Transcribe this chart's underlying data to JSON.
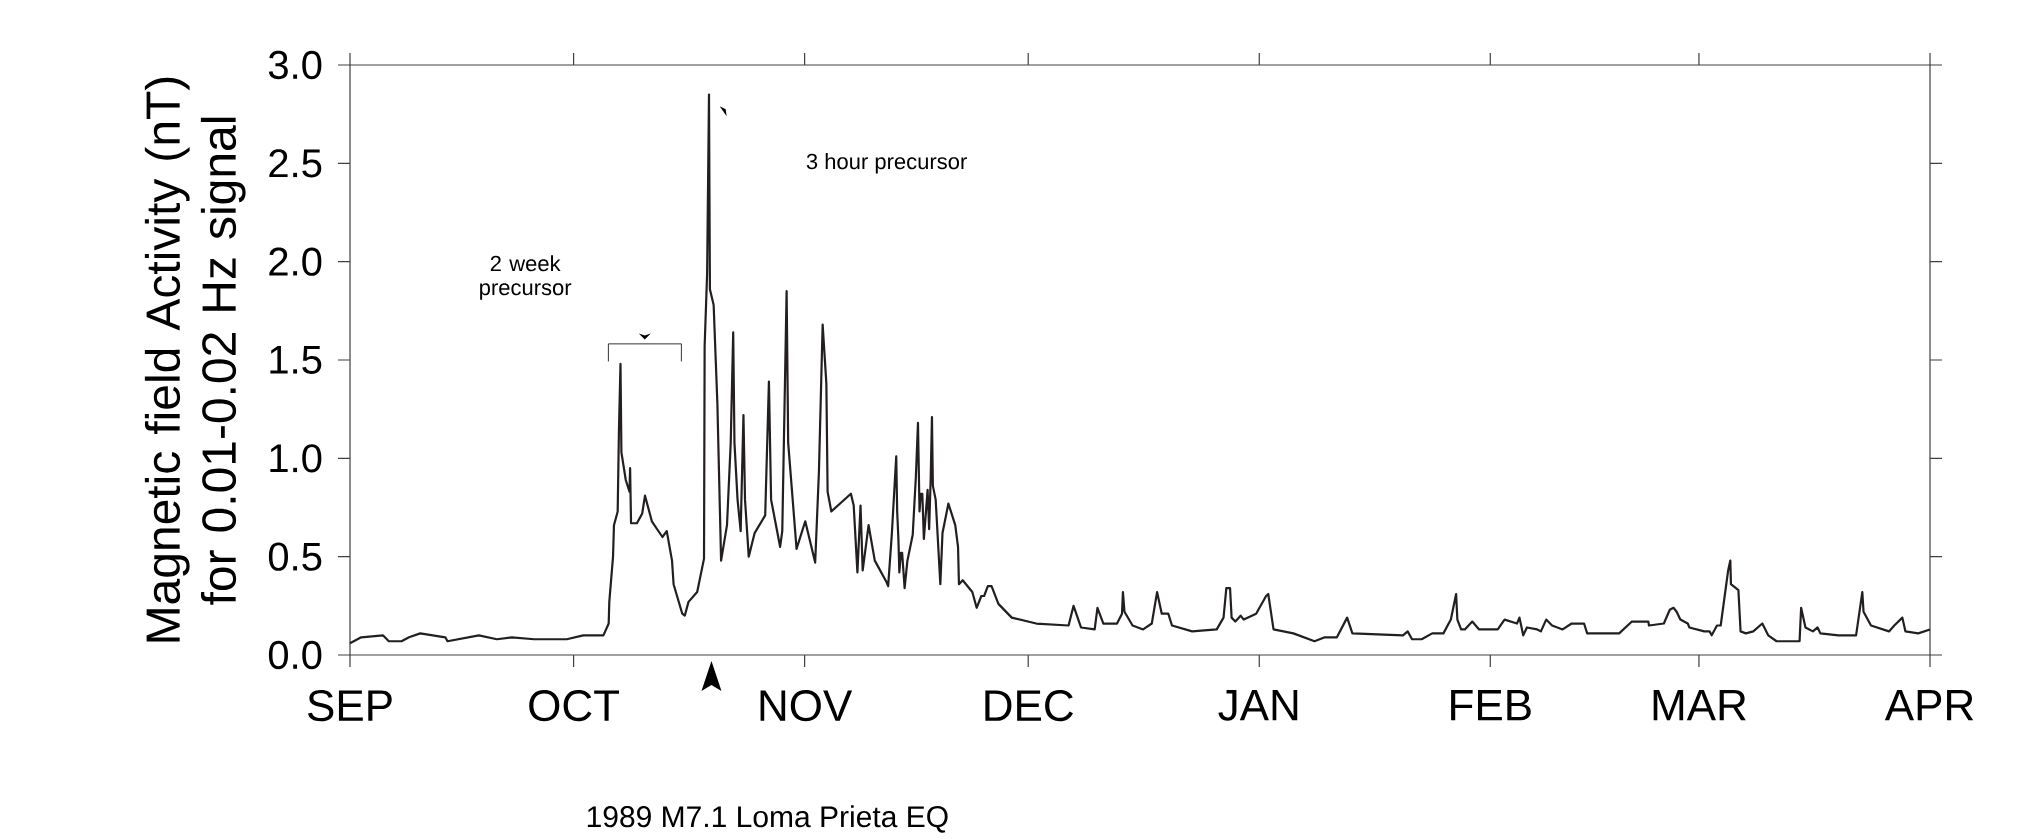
{
  "chart_data": {
    "type": "line",
    "ylabel": "Magnetic field Activity (nT) for 0.01-0.02 Hz signal",
    "color": "#231f20",
    "annotations": [
      "2 week precursor",
      "3 hour precursor",
      "1989 M7.1 Loma Prieta EQ"
    ],
    "xlim": [
      "1989-09-01",
      "1990-04-01"
    ],
    "xticks": [
      {
        "value": "1989-09-01",
        "label": "SEP"
      },
      {
        "value": "1989-10-01",
        "label": "OCT"
      },
      {
        "value": "1989-11-01",
        "label": "NOV"
      },
      {
        "value": "1989-12-01",
        "label": "DEC"
      },
      {
        "value": "1990-01-01",
        "label": "JAN"
      },
      {
        "value": "1990-02-01",
        "label": "FEB"
      },
      {
        "value": "1990-03-01",
        "label": "MAR"
      },
      {
        "value": "1990-04-01",
        "label": "APR"
      }
    ],
    "ylim": [
      0,
      3
    ],
    "yticks": [
      {
        "value": 0,
        "label": "0.0"
      },
      {
        "value": 0.5,
        "label": "0.5"
      },
      {
        "value": 1,
        "label": "1.0"
      },
      {
        "value": 1.5,
        "label": "1.5"
      },
      {
        "value": 2,
        "label": "2.0"
      },
      {
        "value": 2.5,
        "label": "2.5"
      },
      {
        "value": 3,
        "label": "3.0"
      }
    ],
    "x": [
      "1989-09-01T00:00",
      "1989-09-02T12:00",
      "1989-09-05T10:00",
      "1989-09-06T05:00",
      "1989-09-07T22:00",
      "1989-09-08T22:00",
      "1989-09-10T10:00",
      "1989-09-13T19:00",
      "1989-09-14T02:00",
      "1989-09-18T07:00",
      "1989-09-20T17:00",
      "1989-09-22T17:00",
      "1989-09-25T17:00",
      "1989-09-30T02:00",
      "1989-10-02T07:00",
      "1989-10-05T00:00",
      "1989-10-05T17:00",
      "1989-10-05T19:00",
      "1989-10-06T07:00",
      "1989-10-06T10:00",
      "1989-10-06T22:00",
      "1989-10-07T02:00",
      "1989-10-07T07:00",
      "1989-10-07T10:00",
      "1989-10-08T00:00",
      "1989-10-08T12:00",
      "1989-10-08T14:00",
      "1989-10-08T17:00",
      "1989-10-09T12:00",
      "1989-10-10T05:00",
      "1989-10-10T14:00",
      "1989-10-11T12:00",
      "1989-10-12T22:00",
      "1989-10-13T12:00",
      "1989-10-14T05:00",
      "1989-10-14T10:00",
      "1989-10-15T14:00",
      "1989-10-15T22:00",
      "1989-10-16T10:00",
      "1989-10-17T14:00",
      "1989-10-18T12:00",
      "1989-10-18T14:00",
      "1989-10-18T22:00",
      "1989-10-19T04:00",
      "1989-10-19T07:00",
      "1989-10-19T19:00",
      "1989-10-20T07:00",
      "1989-10-20T19:00",
      "1989-10-21T14:00",
      "1989-10-22T02:00",
      "1989-10-22T10:00",
      "1989-10-22T14:00",
      "1989-10-23T00:00",
      "1989-10-23T10:00",
      "1989-10-23T19:00",
      "1989-10-24T00:00",
      "1989-10-24T12:00",
      "1989-10-25T07:00",
      "1989-10-26T17:00",
      "1989-10-27T05:00",
      "1989-10-27T12:00",
      "1989-10-28T17:00",
      "1989-10-29T00:00",
      "1989-10-29T14:00",
      "1989-10-29T19:00",
      "1989-10-30T22:00",
      "1989-11-01T02:00",
      "1989-11-02T10:00",
      "1989-11-02T22:00",
      "1989-11-03T10:00",
      "1989-11-03T22:00",
      "1989-11-04T02:00",
      "1989-11-04T14:00",
      "1989-11-07T05:00",
      "1989-11-07T14:00",
      "1989-11-08T02:00",
      "1989-11-08T12:00",
      "1989-11-08T19:00",
      "1989-11-09T14:00",
      "1989-11-10T10:00",
      "1989-11-12T00:00",
      "1989-11-12T05:00",
      "1989-11-12T17:00",
      "1989-11-13T07:00",
      "1989-11-13T10:00",
      "1989-11-13T14:00",
      "1989-11-13T17:00",
      "1989-11-13T22:00",
      "1989-11-14T02:00",
      "1989-11-14T10:00",
      "1989-11-14T19:00",
      "1989-11-15T12:00",
      "1989-11-15T22:00",
      "1989-11-16T05:00",
      "1989-11-16T10:00",
      "1989-11-16T14:00",
      "1989-11-16T19:00",
      "1989-11-17T00:00",
      "1989-11-17T12:00",
      "1989-11-17T17:00",
      "1989-11-17T22:00",
      "1989-11-18T02:00",
      "1989-11-18T05:00",
      "1989-11-18T14:00",
      "1989-11-19T05:00",
      "1989-11-19T12:00",
      "1989-11-20T07:00",
      "1989-11-21T05:00",
      "1989-11-21T14:00",
      "1989-11-21T17:00",
      "1989-11-22T05:00",
      "1989-11-23T12:00",
      "1989-11-24T02:00",
      "1989-11-24T17:00",
      "1989-11-25T02:00",
      "1989-11-25T14:00",
      "1989-11-26T02:00",
      "1989-11-27T00:00",
      "1989-11-28T19:00",
      "1989-12-02T02:00",
      "1989-12-06T10:00",
      "1989-12-07T02:00",
      "1989-12-08T02:00",
      "1989-12-09T22:00",
      "1989-12-10T07:00",
      "1989-12-11T02:00",
      "1989-12-12T22:00",
      "1989-12-13T14:00",
      "1989-12-13T17:00",
      "1989-12-13T22:00",
      "1989-12-15T00:00",
      "1989-12-16T10:00",
      "1989-12-17T14:00",
      "1989-12-18T07:00",
      "1989-12-18T22:00",
      "1989-12-19T19:00",
      "1989-12-20T07:00",
      "1989-12-23T00:00",
      "1989-12-26T07:00",
      "1989-12-27T05:00",
      "1989-12-27T14:00",
      "1989-12-28T02:00",
      "1989-12-28T07:00",
      "1989-12-28T19:00",
      "1989-12-29T12:00",
      "1989-12-29T22:00",
      "1989-12-31T14:00",
      "1990-01-01T22:00",
      "1990-01-02T05:00",
      "1990-01-02T22:00",
      "1990-01-05T14:00",
      "1990-01-08T10:00",
      "1990-01-09T19:00",
      "1990-01-11T10:00",
      "1990-01-12T19:00",
      "1990-01-13T12:00",
      "1990-01-20T07:00",
      "1990-01-20T22:00",
      "1990-01-21T12:00",
      "1990-01-22T19:00",
      "1990-01-24T05:00",
      "1990-01-25T17:00",
      "1990-01-26T17:00",
      "1990-01-27T10:00",
      "1990-01-27T14:00",
      "1990-01-28T02:00",
      "1990-01-28T14:00",
      "1990-01-29T14:00",
      "1990-01-30T12:00",
      "1990-02-02T00:00",
      "1990-02-02T22:00",
      "1990-02-04T14:00",
      "1990-02-04T22:00",
      "1990-02-05T10:00",
      "1990-02-05T22:00",
      "1990-02-07T07:00",
      "1990-02-07T19:00",
      "1990-02-08T12:00",
      "1990-02-09T07:00",
      "1990-02-10T17:00",
      "1990-02-11T22:00",
      "1990-02-13T14:00",
      "1990-02-14T00:00",
      "1990-02-16T02:00",
      "1990-02-18T07:00",
      "1990-02-20T00:00",
      "1990-02-22T05:00",
      "1990-02-22T07:00",
      "1990-02-24T07:00",
      "1990-02-25T02:00",
      "1990-02-25T14:00",
      "1990-02-26T00:00",
      "1990-02-26T12:00",
      "1990-02-27T12:00",
      "1990-02-27T17:00",
      "1990-03-01T17:00",
      "1990-03-02T10:00",
      "1990-03-02T17:00",
      "1990-03-03T10:00",
      "1990-03-03T22:00",
      "1990-03-04T22:00",
      "1990-03-05T05:00",
      "1990-03-05T07:00",
      "1990-03-06T07:00",
      "1990-03-06T14:00",
      "1990-03-07T07:00",
      "1990-03-08T07:00",
      "1990-03-09T12:00",
      "1990-03-10T07:00",
      "1990-03-11T10:00",
      "1990-03-14T12:00",
      "1990-03-14T17:00",
      "1990-03-15T07:00",
      "1990-03-16T07:00",
      "1990-03-16T22:00",
      "1990-03-17T07:00",
      "1990-03-19T17:00",
      "1990-03-22T02:00",
      "1990-03-22T22:00",
      "1990-03-23T02:00",
      "1990-03-24T02:00",
      "1990-03-26T12:00",
      "1990-03-27T05:00",
      "1990-03-28T07:00",
      "1990-03-28T17:00",
      "1990-03-30T10:00",
      "1990-04-01T00:00"
    ],
    "values": [
      0.06,
      0.09,
      0.1,
      0.07,
      0.07,
      0.09,
      0.11,
      0.09,
      0.07,
      0.1,
      0.08,
      0.09,
      0.08,
      0.08,
      0.1,
      0.1,
      0.16,
      0.27,
      0.5,
      0.66,
      0.73,
      1.14,
      1.48,
      1.03,
      0.89,
      0.83,
      0.95,
      0.67,
      0.67,
      0.72,
      0.81,
      0.68,
      0.6,
      0.63,
      0.48,
      0.36,
      0.21,
      0.2,
      0.27,
      0.32,
      0.49,
      1.57,
      1.94,
      2.85,
      1.86,
      1.78,
      1.28,
      0.48,
      0.66,
      1.08,
      1.64,
      1.08,
      0.79,
      0.63,
      1.22,
      0.79,
      0.5,
      0.62,
      0.71,
      1.39,
      0.79,
      0.55,
      0.63,
      1.85,
      1.08,
      0.54,
      0.68,
      0.47,
      0.93,
      1.68,
      1.38,
      0.83,
      0.73,
      0.82,
      0.76,
      0.42,
      0.76,
      0.43,
      0.66,
      0.48,
      0.37,
      0.35,
      0.62,
      1.01,
      0.73,
      0.59,
      0.42,
      0.52,
      0.52,
      0.34,
      0.48,
      0.61,
      0.9,
      1.18,
      0.73,
      0.82,
      0.82,
      0.59,
      0.84,
      0.64,
      0.9,
      1.21,
      0.86,
      0.79,
      0.36,
      0.62,
      0.77,
      0.66,
      0.55,
      0.36,
      0.38,
      0.32,
      0.24,
      0.3,
      0.3,
      0.35,
      0.35,
      0.26,
      0.19,
      0.16,
      0.15,
      0.25,
      0.14,
      0.13,
      0.24,
      0.16,
      0.16,
      0.21,
      0.32,
      0.22,
      0.15,
      0.13,
      0.16,
      0.32,
      0.21,
      0.21,
      0.15,
      0.12,
      0.13,
      0.19,
      0.34,
      0.34,
      0.19,
      0.17,
      0.2,
      0.18,
      0.21,
      0.3,
      0.31,
      0.13,
      0.11,
      0.07,
      0.09,
      0.09,
      0.19,
      0.11,
      0.1,
      0.12,
      0.08,
      0.08,
      0.11,
      0.11,
      0.18,
      0.31,
      0.18,
      0.13,
      0.13,
      0.17,
      0.13,
      0.13,
      0.18,
      0.16,
      0.19,
      0.1,
      0.14,
      0.13,
      0.12,
      0.18,
      0.15,
      0.13,
      0.16,
      0.16,
      0.11,
      0.11,
      0.11,
      0.17,
      0.17,
      0.15,
      0.16,
      0.23,
      0.24,
      0.22,
      0.18,
      0.16,
      0.14,
      0.12,
      0.12,
      0.1,
      0.15,
      0.15,
      0.43,
      0.48,
      0.36,
      0.33,
      0.12,
      0.11,
      0.12,
      0.16,
      0.1,
      0.07,
      0.07,
      0.24,
      0.14,
      0.12,
      0.14,
      0.11,
      0.1,
      0.1,
      0.32,
      0.22,
      0.15,
      0.12,
      0.15,
      0.19,
      0.12,
      0.11,
      0.13
    ]
  }
}
